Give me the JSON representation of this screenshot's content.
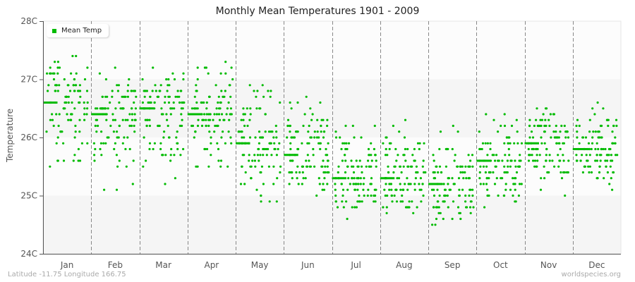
{
  "chart_data": {
    "type": "scatter",
    "title": "Monthly Mean Temperatures 1901 - 2009",
    "xlabel": "",
    "ylabel": "Temperature",
    "ylim": [
      24,
      28
    ],
    "yticks": [
      "24C",
      "25C",
      "26C",
      "27C",
      "28C"
    ],
    "categories": [
      "Jan",
      "Feb",
      "Mar",
      "Apr",
      "May",
      "Jun",
      "Jul",
      "Aug",
      "Sep",
      "Oct",
      "Nov",
      "Dec"
    ],
    "legend": {
      "position": "top-left",
      "entries": [
        "Mean Temp"
      ]
    },
    "grid": {
      "vertical_month_dividers": "dashed",
      "horizontal_bands": true
    },
    "series": [
      {
        "name": "Mean Temp",
        "color": "#00bb00",
        "monthly_mean": [
          26.6,
          26.4,
          26.5,
          26.4,
          25.9,
          25.7,
          25.3,
          25.3,
          25.2,
          25.6,
          25.9,
          25.8
        ],
        "monthly_min": [
          25.1,
          24.8,
          25.0,
          25.2,
          24.5,
          24.6,
          24.2,
          24.4,
          24.1,
          24.5,
          24.7,
          24.9
        ],
        "monthly_max": [
          27.7,
          27.4,
          27.4,
          27.6,
          27.2,
          26.9,
          26.6,
          26.5,
          26.4,
          26.7,
          26.8,
          26.9
        ],
        "points_per_month": 109
      }
    ]
  },
  "header": {
    "title": "Monthly Mean Temperatures 1901 - 2009"
  },
  "axis": {
    "y_label": "Temperature"
  },
  "legend": {
    "label": "Mean Temp"
  },
  "footer": {
    "location": "Latitude -11.75 Longitude 166.75",
    "credit": "worldspecies.org"
  }
}
